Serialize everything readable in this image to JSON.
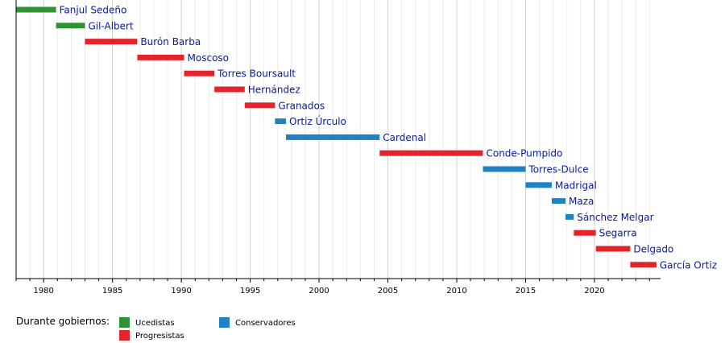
{
  "chart_data": {
    "type": "timeline",
    "xlim": [
      1978,
      2024.8
    ],
    "ticks": [
      1980,
      1985,
      1990,
      1995,
      2000,
      2005,
      2010,
      2015,
      2020
    ],
    "minor_step": 1,
    "groups": {
      "ucd": {
        "label": "Ucedistas",
        "color": "#2f9335"
      },
      "psoe": {
        "label": "Progresistas",
        "color": "#e2242b"
      },
      "pp": {
        "label": "Conservadores",
        "color": "#1f82c4"
      }
    },
    "bars": [
      {
        "name": "Fanjul Sedeño",
        "start": 1978.0,
        "end": 1980.9,
        "group": "ucd"
      },
      {
        "name": "Gil-Albert",
        "start": 1980.9,
        "end": 1983.0,
        "group": "ucd"
      },
      {
        "name": "Burón Barba",
        "start": 1983.0,
        "end": 1986.8,
        "group": "psoe"
      },
      {
        "name": "Moscoso",
        "start": 1986.8,
        "end": 1990.2,
        "group": "psoe"
      },
      {
        "name": "Torres Boursault",
        "start": 1990.2,
        "end": 1992.4,
        "group": "psoe"
      },
      {
        "name": "Hernández",
        "start": 1992.4,
        "end": 1994.6,
        "group": "psoe"
      },
      {
        "name": "Granados",
        "start": 1994.6,
        "end": 1996.8,
        "group": "psoe"
      },
      {
        "name": "Ortiz Úrculo",
        "start": 1996.8,
        "end": 1997.6,
        "group": "pp"
      },
      {
        "name": "Cardenal",
        "start": 1997.6,
        "end": 2004.4,
        "group": "pp"
      },
      {
        "name": "Conde-Pumpido",
        "start": 2004.4,
        "end": 2011.9,
        "group": "psoe"
      },
      {
        "name": "Torres-Dulce",
        "start": 2011.9,
        "end": 2015.0,
        "group": "pp"
      },
      {
        "name": "Madrigal",
        "start": 2015.0,
        "end": 2016.9,
        "group": "pp"
      },
      {
        "name": "Maza",
        "start": 2016.9,
        "end": 2017.9,
        "group": "pp"
      },
      {
        "name": "Sánchez Melgar",
        "start": 2017.9,
        "end": 2018.5,
        "group": "pp"
      },
      {
        "name": "Segarra",
        "start": 2018.5,
        "end": 2020.1,
        "group": "psoe"
      },
      {
        "name": "Delgado",
        "start": 2020.1,
        "end": 2022.6,
        "group": "psoe"
      },
      {
        "name": "García Ortiz",
        "start": 2022.6,
        "end": 2024.5,
        "group": "psoe"
      }
    ]
  },
  "legend": {
    "title": "Durante gobiernos:",
    "items": [
      {
        "key": "ucd",
        "label": "Ucedistas"
      },
      {
        "key": "psoe",
        "label": "Progresistas"
      },
      {
        "key": "pp",
        "label": "Conservadores"
      }
    ]
  }
}
